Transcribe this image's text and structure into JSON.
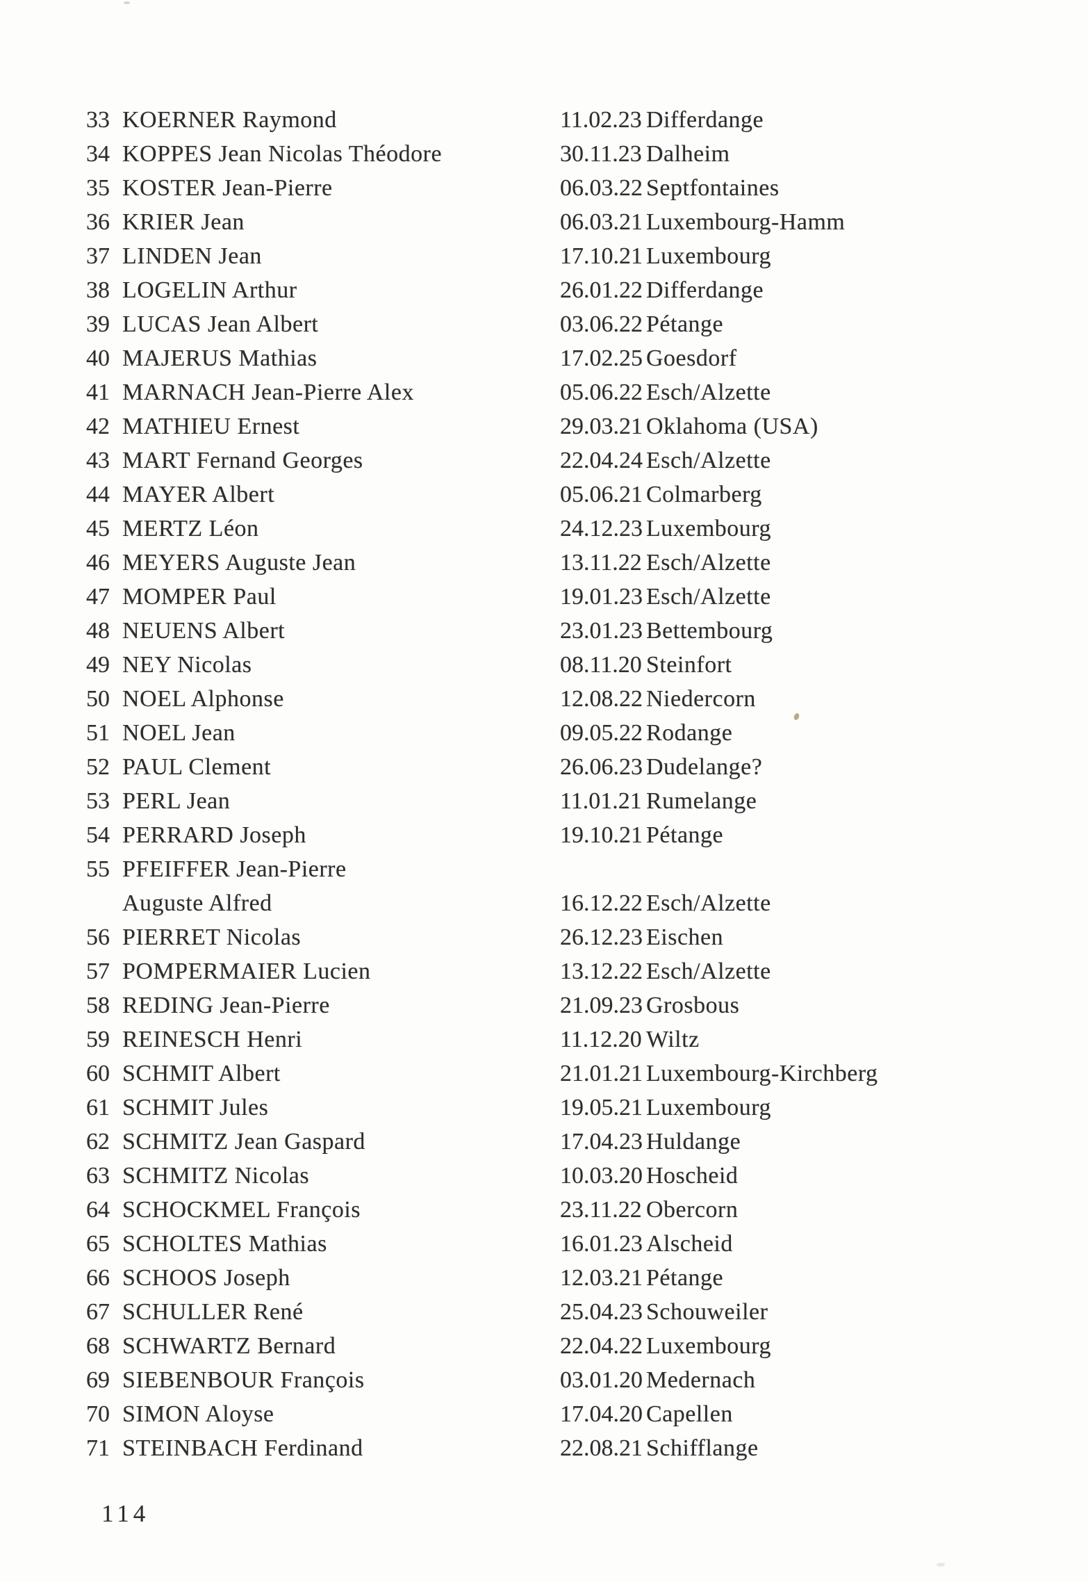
{
  "page": {
    "number": "114"
  },
  "list": {
    "rows": [
      {
        "num": "33",
        "name": "KOERNER Raymond",
        "date": "11.02.23",
        "place": "Differdange"
      },
      {
        "num": "34",
        "name": "KOPPES Jean Nicolas Théodore",
        "date": "30.11.23",
        "place": "Dalheim"
      },
      {
        "num": "35",
        "name": "KOSTER Jean-Pierre",
        "date": "06.03.22",
        "place": "Septfontaines"
      },
      {
        "num": "36",
        "name": "KRIER Jean",
        "date": "06.03.21",
        "place": "Luxembourg-Hamm"
      },
      {
        "num": "37",
        "name": "LINDEN Jean",
        "date": "17.10.21",
        "place": "Luxembourg"
      },
      {
        "num": "38",
        "name": "LOGELIN Arthur",
        "date": "26.01.22",
        "place": "Differdange"
      },
      {
        "num": "39",
        "name": "LUCAS Jean Albert",
        "date": "03.06.22",
        "place": "Pétange"
      },
      {
        "num": "40",
        "name": "MAJERUS Mathias",
        "date": "17.02.25",
        "place": "Goesdorf"
      },
      {
        "num": "41",
        "name": "MARNACH Jean-Pierre Alex",
        "date": "05.06.22",
        "place": "Esch/Alzette"
      },
      {
        "num": "42",
        "name": "MATHIEU Ernest",
        "date": "29.03.21",
        "place": "Oklahoma (USA)"
      },
      {
        "num": "43",
        "name": "MART Fernand Georges",
        "date": "22.04.24",
        "place": "Esch/Alzette"
      },
      {
        "num": "44",
        "name": "MAYER Albert",
        "date": "05.06.21",
        "place": "Colmarberg"
      },
      {
        "num": "45",
        "name": "MERTZ Léon",
        "date": "24.12.23",
        "place": "Luxembourg"
      },
      {
        "num": "46",
        "name": "MEYERS Auguste Jean",
        "date": "13.11.22",
        "place": "Esch/Alzette"
      },
      {
        "num": "47",
        "name": "MOMPER Paul",
        "date": "19.01.23",
        "place": "Esch/Alzette"
      },
      {
        "num": "48",
        "name": "NEUENS Albert",
        "date": "23.01.23",
        "place": "Bettembourg"
      },
      {
        "num": "49",
        "name": "NEY Nicolas",
        "date": "08.11.20",
        "place": "Steinfort"
      },
      {
        "num": "50",
        "name": "NOEL Alphonse",
        "date": "12.08.22",
        "place": "Niedercorn"
      },
      {
        "num": "51",
        "name": "NOEL Jean",
        "date": "09.05.22",
        "place": "Rodange"
      },
      {
        "num": "52",
        "name": "PAUL Clement",
        "date": "26.06.23",
        "place": "Dudelange?"
      },
      {
        "num": "53",
        "name": "PERL Jean",
        "date": "11.01.21",
        "place": "Rumelange"
      },
      {
        "num": "54",
        "name": "PERRARD Joseph",
        "date": "19.10.21",
        "place": "Pétange"
      },
      {
        "num": "55",
        "name": "PFEIFFER Jean-Pierre",
        "date": "",
        "place": ""
      },
      {
        "num": "",
        "name": "Auguste Alfred",
        "date": "16.12.22",
        "place": "Esch/Alzette"
      },
      {
        "num": "56",
        "name": "PIERRET Nicolas",
        "date": "26.12.23",
        "place": "Eischen"
      },
      {
        "num": "57",
        "name": "POMPERMAIER Lucien",
        "date": "13.12.22",
        "place": "Esch/Alzette"
      },
      {
        "num": "58",
        "name": "REDING Jean-Pierre",
        "date": "21.09.23",
        "place": "Grosbous"
      },
      {
        "num": "59",
        "name": "REINESCH Henri",
        "date": "11.12.20",
        "place": "Wiltz"
      },
      {
        "num": "60",
        "name": "SCHMIT Albert",
        "date": "21.01.21",
        "place": "Luxembourg-Kirchberg"
      },
      {
        "num": "61",
        "name": "SCHMIT Jules",
        "date": "19.05.21",
        "place": "Luxembourg"
      },
      {
        "num": "62",
        "name": "SCHMITZ Jean Gaspard",
        "date": "17.04.23",
        "place": "Huldange"
      },
      {
        "num": "63",
        "name": "SCHMITZ Nicolas",
        "date": "10.03.20",
        "place": "Hoscheid"
      },
      {
        "num": "64",
        "name": "SCHOCKMEL François",
        "date": "23.11.22",
        "place": "Obercorn"
      },
      {
        "num": "65",
        "name": "SCHOLTES Mathias",
        "date": "16.01.23",
        "place": "Alscheid"
      },
      {
        "num": "66",
        "name": "SCHOOS Joseph",
        "date": "12.03.21",
        "place": "Pétange"
      },
      {
        "num": "67",
        "name": "SCHULLER René",
        "date": "25.04.23",
        "place": "Schouweiler"
      },
      {
        "num": "68",
        "name": "SCHWARTZ Bernard",
        "date": "22.04.22",
        "place": "Luxembourg"
      },
      {
        "num": "69",
        "name": "SIEBENBOUR François",
        "date": "03.01.20",
        "place": "Medernach"
      },
      {
        "num": "70",
        "name": "SIMON Aloyse",
        "date": "17.04.20",
        "place": "Capellen"
      },
      {
        "num": "71",
        "name": "STEINBACH Ferdinand",
        "date": "22.08.21",
        "place": "Schifflange"
      }
    ]
  }
}
